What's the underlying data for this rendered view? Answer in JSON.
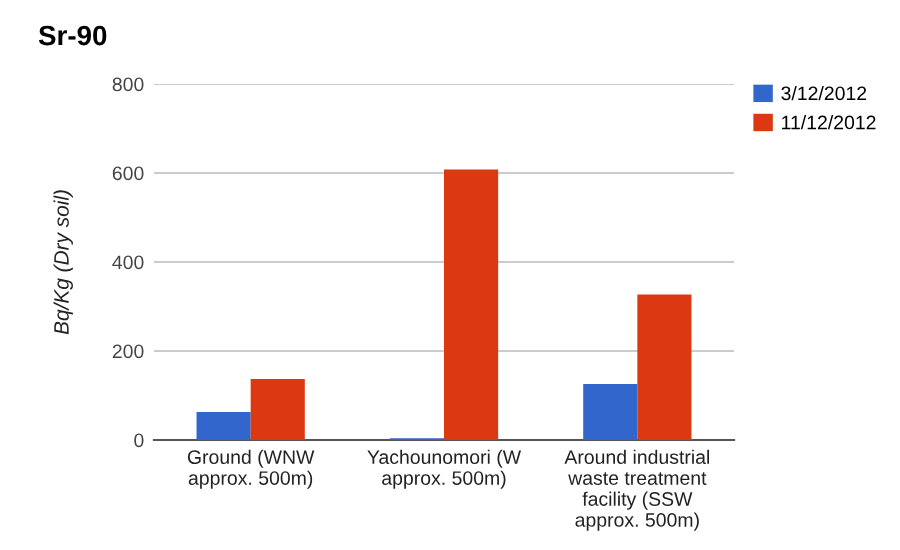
{
  "chart_data": {
    "type": "bar",
    "title": "Sr-90",
    "ylabel": "Bq/Kg (Dry soil)",
    "categories": [
      "Ground (WNW approx. 500m)",
      "Yachounomori (W approx. 500m)",
      "Around industrial waste treatment facility (SSW approx. 500m)"
    ],
    "series": [
      {
        "name": "3/12/2012",
        "color": "#3366cc",
        "values": [
          63,
          4,
          126
        ]
      },
      {
        "name": "11/12/2012",
        "color": "#dc3912",
        "values": [
          137,
          608,
          327
        ]
      }
    ],
    "ylim": [
      0,
      800
    ],
    "yticks": [
      0,
      200,
      400,
      600,
      800
    ],
    "grid": "y",
    "legend": "top right"
  }
}
